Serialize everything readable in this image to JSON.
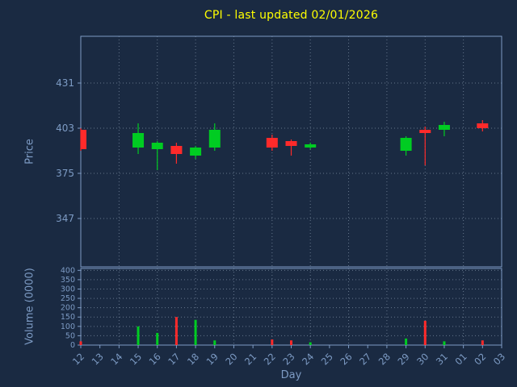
{
  "colors": {
    "background": "#1a2a42",
    "text": "#7d9bc4",
    "title": "#ffff00",
    "grid": "#aebfd4",
    "spine": "#7d9bc4",
    "up": "#00cc22",
    "down": "#ff2a2a"
  },
  "chart_data": {
    "type": "candlestick",
    "title": "CPI - last updated 02/01/2026",
    "xlabel": "Day",
    "price_ylabel": "Price",
    "volume_ylabel": "Volume (0000)",
    "legend": "none",
    "grid": "dotted",
    "x_ticklabels": [
      "12",
      "13",
      "14",
      "15",
      "16",
      "17",
      "18",
      "19",
      "20",
      "21",
      "22",
      "23",
      "24",
      "25",
      "26",
      "27",
      "28",
      "29",
      "30",
      "31",
      "01",
      "02",
      "03"
    ],
    "price_yticks": [
      347,
      375,
      403,
      431
    ],
    "price_ylim": [
      317,
      460
    ],
    "volume_yticks": [
      0,
      50,
      100,
      150,
      200,
      250,
      300,
      350,
      400
    ],
    "volume_ylim": [
      0,
      410
    ],
    "candles": [
      {
        "day": "12",
        "open": 402,
        "high": 403,
        "low": 389,
        "close": 390,
        "volume": 20
      },
      {
        "day": "15",
        "open": 391,
        "high": 406,
        "low": 387,
        "close": 400,
        "volume": 100
      },
      {
        "day": "16",
        "open": 390,
        "high": 395,
        "low": 377,
        "close": 394,
        "volume": 65
      },
      {
        "day": "17",
        "open": 392,
        "high": 394,
        "low": 381,
        "close": 387,
        "volume": 150
      },
      {
        "day": "18",
        "open": 386,
        "high": 392,
        "low": 384,
        "close": 391,
        "volume": 135
      },
      {
        "day": "19",
        "open": 391,
        "high": 406,
        "low": 389,
        "close": 402,
        "volume": 25
      },
      {
        "day": "22",
        "open": 397,
        "high": 399,
        "low": 389,
        "close": 391,
        "volume": 30
      },
      {
        "day": "23",
        "open": 395,
        "high": 396,
        "low": 386,
        "close": 392,
        "volume": 25
      },
      {
        "day": "24",
        "open": 391,
        "high": 394,
        "low": 390,
        "close": 393,
        "volume": 15
      },
      {
        "day": "29",
        "open": 389,
        "high": 398,
        "low": 386,
        "close": 397,
        "volume": 35
      },
      {
        "day": "30",
        "open": 402,
        "high": 404,
        "low": 380,
        "close": 400,
        "volume": 130
      },
      {
        "day": "31",
        "open": 402,
        "high": 407,
        "low": 398,
        "close": 405,
        "volume": 20
      },
      {
        "day": "02",
        "open": 406,
        "high": 408,
        "low": 401,
        "close": 403,
        "volume": 25
      }
    ]
  }
}
